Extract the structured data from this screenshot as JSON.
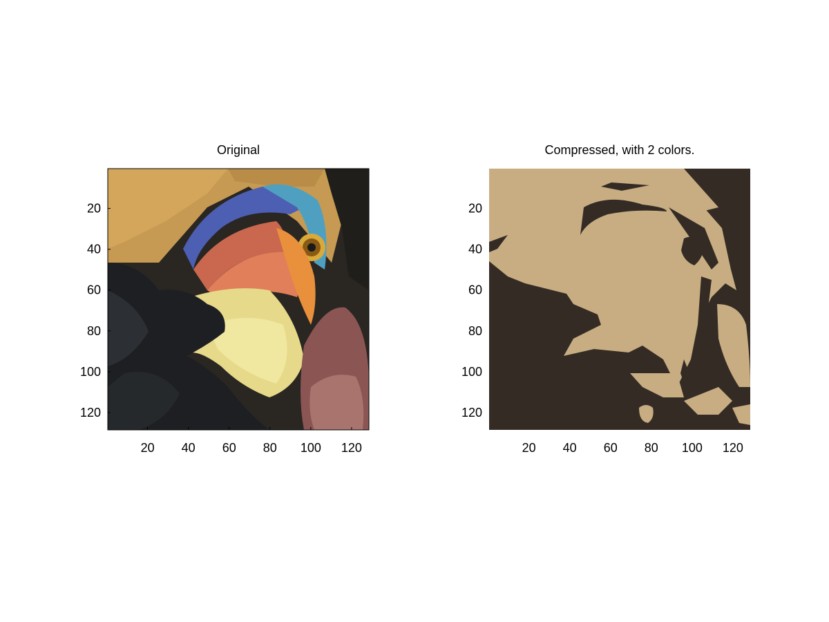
{
  "chart_data": [
    {
      "type": "image",
      "title": "Original",
      "xlabel": "",
      "ylabel": "",
      "xlim": [
        0.5,
        128.5
      ],
      "ylim": [
        0.5,
        128.5
      ],
      "xticks": [
        20,
        40,
        60,
        80,
        100,
        120
      ],
      "yticks": [
        20,
        40,
        60,
        80,
        100,
        120
      ],
      "y_direction": "reversed",
      "grid": false,
      "image_content": "photograph of a hornbill head with multicolored beak"
    },
    {
      "type": "image",
      "title": "Compressed, with 2 colors.",
      "xlabel": "",
      "ylabel": "",
      "xlim": [
        0.5,
        128.5
      ],
      "ylim": [
        0.5,
        128.5
      ],
      "xticks": [
        20,
        40,
        60,
        80,
        100,
        120
      ],
      "yticks": [
        20,
        40,
        60,
        80,
        100,
        120
      ],
      "y_direction": "reversed",
      "grid": false,
      "palette": [
        "#c8ad83",
        "#342c24"
      ]
    }
  ]
}
